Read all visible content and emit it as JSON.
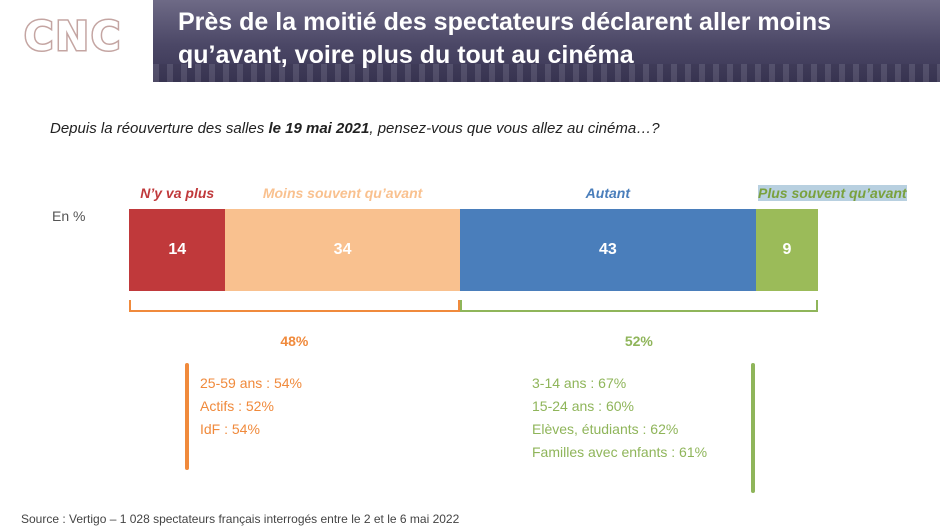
{
  "logo": "CNC",
  "title_line1": "Près de la moitié des spectateurs déclarent aller moins",
  "title_line2": "qu’avant, voire plus du tout au cinéma",
  "question": {
    "prefix": "Depuis la réouverture des salles ",
    "bold": "le 19 mai 2021",
    "suffix": ", pensez-vous que vous allez au cinéma…?"
  },
  "chart_data": {
    "type": "bar",
    "orientation": "horizontal-stacked",
    "unit_label": "En %",
    "xlim": [
      0,
      100
    ],
    "categories": [
      "N’y va plus",
      "Moins souvent qu’avant",
      "Autant",
      "Plus souvent qu’avant"
    ],
    "values": [
      14,
      34,
      43,
      9
    ],
    "colors": [
      "#c0393b",
      "#f9c18f",
      "#4a7ebb",
      "#9bbb59"
    ],
    "label_colors": [
      "#c0393b",
      "#f9c18f",
      "#4a7ebb",
      "#7aa13d"
    ],
    "groups": [
      {
        "total": "48%",
        "color": "#f08a3c",
        "details": [
          "25-59 ans : 54%",
          "Actifs : 52%",
          "IdF : 54%"
        ]
      },
      {
        "total": "52%",
        "color": "#8fb55a",
        "details": [
          "3-14 ans : 67%",
          "15-24 ans : 60%",
          "Elèves, étudiants : 62%",
          "Familles avec enfants : 61%"
        ]
      }
    ]
  },
  "source": "Source :  Vertigo – 1 028 spectateurs français interrogés entre le 2 et le 6 mai 2022"
}
